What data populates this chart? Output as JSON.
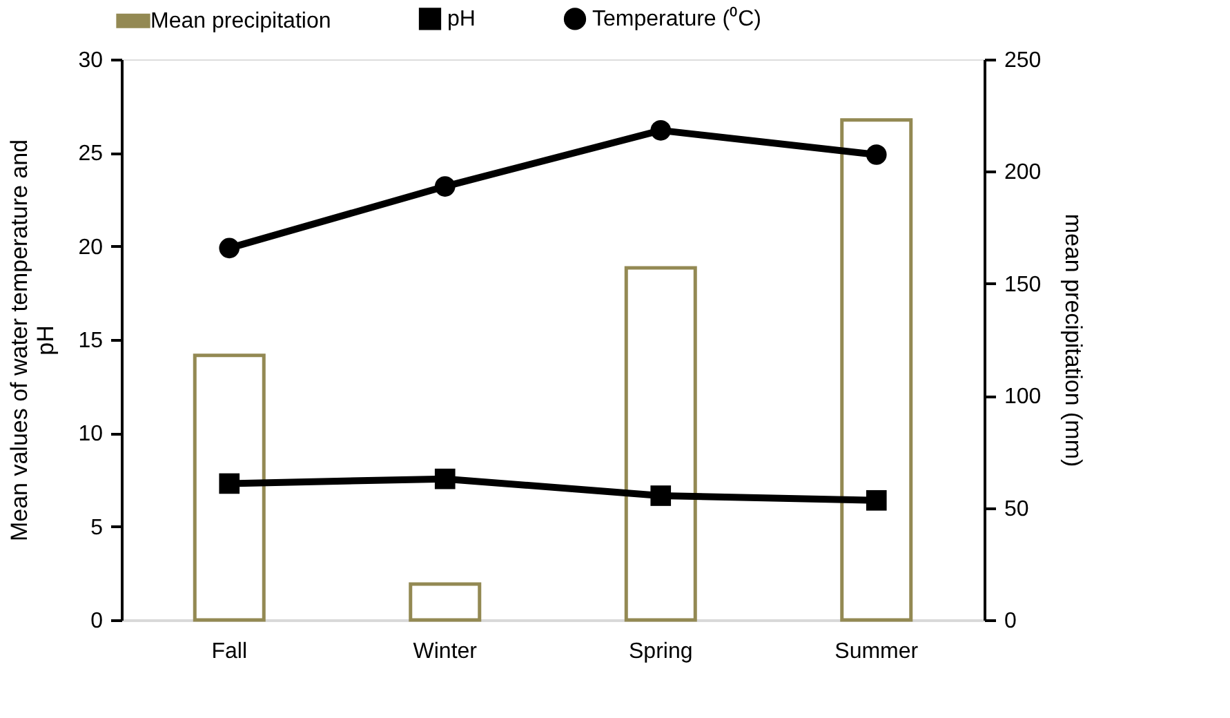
{
  "chart_data": {
    "type": "line",
    "categories": [
      "Fall",
      "Winter",
      "Spring",
      "Summer"
    ],
    "ylabel": "Mean values of water temperature and pH",
    "y2label": "mean precipitation  (mm)",
    "ylim": [
      0,
      30
    ],
    "yticks": [
      0,
      5,
      10,
      15,
      20,
      25,
      30
    ],
    "y2lim": [
      0,
      250
    ],
    "y2ticks": [
      0,
      50,
      100,
      150,
      200,
      250
    ],
    "grid": false,
    "legend": "top",
    "series": [
      {
        "name": "Mean precipitation",
        "type": "bar",
        "axis": "y2",
        "color": "#938953",
        "values": [
          118,
          16,
          157,
          223
        ]
      },
      {
        "name": "pH",
        "marker": "square",
        "color": "#000000",
        "values": [
          7.3,
          7.55,
          6.65,
          6.4
        ]
      },
      {
        "name": "Temperature (⁰C)",
        "marker": "circle",
        "color": "#000000",
        "values": [
          19.9,
          23.2,
          26.2,
          24.9
        ]
      }
    ]
  }
}
